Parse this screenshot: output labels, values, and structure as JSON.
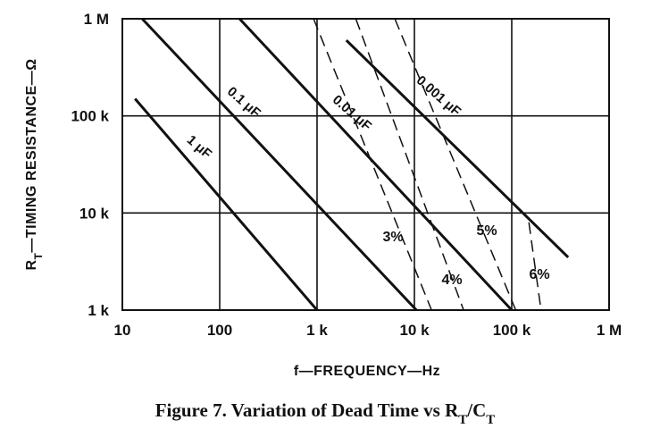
{
  "chart_data": {
    "type": "line",
    "xlabel": "f—FREQUENCY—Hz",
    "ylabel": "R<sub>T</sub>—TIMING RESISTANCE—Ω",
    "ylabel_main": "R",
    "ylabel_sub": "T",
    "ylabel_rest": "—TIMING RESISTANCE—Ω",
    "xscale": "log",
    "yscale": "log",
    "xlim": [
      10,
      1000000
    ],
    "ylim": [
      1000,
      1000000
    ],
    "grid": true,
    "x_ticks": [
      10,
      100,
      1000,
      10000,
      100000,
      1000000
    ],
    "x_tick_labels": [
      "10",
      "100",
      "1 k",
      "10 k",
      "100 k",
      "1 M"
    ],
    "y_ticks": [
      1000,
      10000,
      100000,
      1000000
    ],
    "y_tick_labels": [
      "1 k",
      "10 k",
      "100 k",
      "1 M"
    ],
    "capacitance_series": [
      {
        "name": "1 μF",
        "points": [
          [
            13.5,
            150000
          ],
          [
            1000,
            1000
          ]
        ]
      },
      {
        "name": "0.1 μF",
        "points": [
          [
            16,
            1000000
          ],
          [
            10500,
            1000
          ]
        ]
      },
      {
        "name": "0.01 μF",
        "points": [
          [
            160,
            1000000
          ],
          [
            100000,
            1000
          ]
        ]
      },
      {
        "name": "0.001 μF",
        "points": [
          [
            2000,
            600000
          ],
          [
            380000,
            3500
          ]
        ]
      }
    ],
    "dead_time_series": [
      {
        "name": "3%",
        "points": [
          [
            920,
            1000000
          ],
          [
            15000,
            1000
          ]
        ]
      },
      {
        "name": "4%",
        "points": [
          [
            2500,
            1000000
          ],
          [
            32000,
            1000
          ]
        ]
      },
      {
        "name": "5%",
        "points": [
          [
            6300,
            1000000
          ],
          [
            110000,
            1000
          ]
        ]
      },
      {
        "name": "6%",
        "points": [
          [
            150000,
            8000
          ],
          [
            200000,
            1000
          ]
        ]
      }
    ],
    "caption": "Figure 7. Variation of Dead Time vs R<sub>T</sub>/C<sub>T</sub>",
    "caption_parts": [
      "Figure 7. Variation of Dead Time vs R",
      "T",
      "/C",
      "T"
    ]
  },
  "colors": {
    "ink": "#111111",
    "background": "#ffffff"
  }
}
